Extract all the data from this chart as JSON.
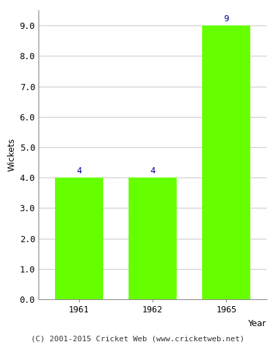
{
  "years": [
    "1961",
    "1962",
    "1965"
  ],
  "values": [
    4,
    4,
    9
  ],
  "bar_color": "#66ff00",
  "bar_edgecolor": "#66ff00",
  "label_color": "#000099",
  "xlabel": "Year",
  "ylabel": "Wickets",
  "ylim": [
    0,
    9.5
  ],
  "yticks": [
    0.0,
    1.0,
    2.0,
    3.0,
    4.0,
    5.0,
    6.0,
    7.0,
    8.0,
    9.0
  ],
  "axis_label_fontsize": 9,
  "tick_fontsize": 9,
  "label_fontsize": 9,
  "footer": "(C) 2001-2015 Cricket Web (www.cricketweb.net)",
  "footer_fontsize": 8,
  "background_color": "#ffffff",
  "grid_color": "#cccccc"
}
